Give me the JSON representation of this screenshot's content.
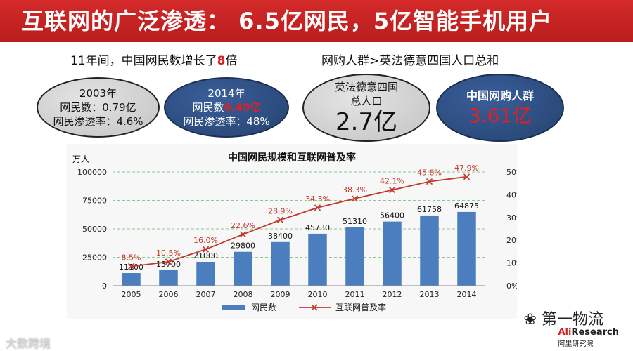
{
  "header": {
    "title": "互联网的广泛渗透： 6.5亿网民，5亿智能手机用户"
  },
  "left_summary": {
    "prefix": "11年间，中国网民数增长了",
    "highlight": "8",
    "suffix": "倍"
  },
  "right_summary": {
    "text": "网购人群>英法德意四国人口总和"
  },
  "oval_2003": {
    "year": "2003年",
    "users": "网民数：0.79亿",
    "rate": "网民渗透率：4.6%"
  },
  "oval_2014": {
    "year": "2014年",
    "users_prefix": "网民数",
    "users_value": "6.49亿",
    "rate": "网民渗透率：48%"
  },
  "oval_europe": {
    "line1": "英法德意四国",
    "line2": "总人口",
    "value": "2.7亿"
  },
  "oval_shoppers": {
    "label": "中国网购人群",
    "value": "3.61亿"
  },
  "chart_data": {
    "type": "bar",
    "title": "中国网民规模和互联网普及率",
    "ylabel": "万人",
    "categories": [
      "2005",
      "2006",
      "2007",
      "2008",
      "2009",
      "2010",
      "2011",
      "2012",
      "2013",
      "2014"
    ],
    "ylim": [
      0,
      100000
    ],
    "y_ticks": [
      "0",
      "25000",
      "50000",
      "75000",
      "100000"
    ],
    "y2_ticks": [
      "0%",
      "10%",
      "20%",
      "30%",
      "40%",
      "50%"
    ],
    "y2lim": [
      0,
      50
    ],
    "series": [
      {
        "name": "网民数",
        "kind": "bar",
        "color": "#4a7ebf",
        "values": [
          11100,
          13700,
          21000,
          29800,
          38400,
          45730,
          51310,
          56400,
          61758,
          64875
        ],
        "labels": [
          "11100",
          "13700",
          "21000",
          "29800",
          "38400",
          "45730",
          "51310",
          "56400",
          "61758",
          "64875"
        ]
      },
      {
        "name": "互联网普及率",
        "kind": "line",
        "color": "#c0392b",
        "axis": "right",
        "values": [
          8.5,
          10.5,
          16.0,
          22.6,
          28.9,
          34.3,
          38.3,
          42.1,
          45.8,
          47.9
        ],
        "labels": [
          "8.5%",
          "10.5%",
          "16.0%",
          "22.6%",
          "28.9%",
          "34.3%",
          "38.3%",
          "42.1%",
          "45.8%",
          "47.9%"
        ]
      }
    ],
    "legend_position": "bottom",
    "grid": true
  },
  "watermarks": {
    "wechat": "第一物流",
    "research_a": "Ali",
    "research_b": "Research",
    "research_sub": "阿里研究院",
    "left": "大数跨境"
  }
}
